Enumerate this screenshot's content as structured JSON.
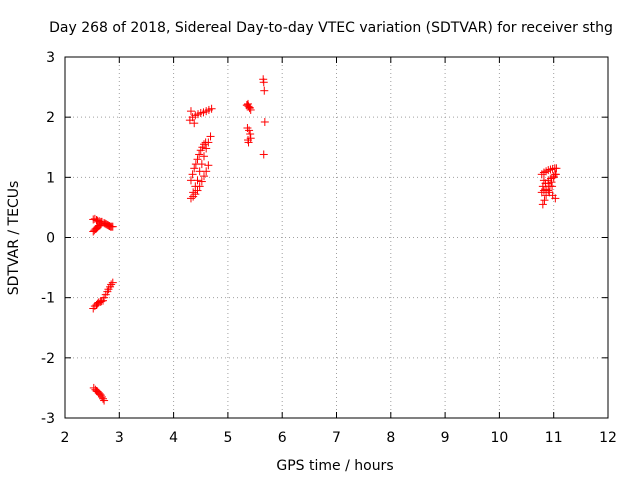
{
  "chart_data": {
    "type": "scatter",
    "title": "Day 268 of 2018, Sidereal Day-to-day VTEC variation (SDTVAR) for receiver sthg",
    "xlabel": "GPS time / hours",
    "ylabel": "SDTVAR / TECUs",
    "xlim": [
      2,
      12
    ],
    "ylim": [
      -3,
      3
    ],
    "x_ticks": [
      2,
      3,
      4,
      5,
      6,
      7,
      8,
      9,
      10,
      11,
      12
    ],
    "y_ticks": [
      -3,
      -2,
      -1,
      0,
      1,
      2,
      3
    ],
    "x_tick_labels": [
      "2",
      "3",
      "4",
      "5",
      "6",
      "7",
      "8",
      "9",
      "10",
      "11",
      "12"
    ],
    "y_tick_labels": [
      "-3",
      "-2",
      "-1",
      "0",
      "1",
      "2",
      "3"
    ],
    "grid": true,
    "legend": false,
    "marker": "plus",
    "colors": {
      "points": "#ff0000",
      "axes": "#000000",
      "grid": "#a0a0a0",
      "background": "#ffffff"
    },
    "series": [
      {
        "name": "sthg",
        "x": [
          2.52,
          2.55,
          2.58,
          2.6,
          2.62,
          2.65,
          2.67,
          2.7,
          2.72,
          2.75,
          2.78,
          2.8,
          2.83,
          2.85,
          2.88,
          2.53,
          2.56,
          2.58,
          2.6,
          2.62,
          2.64,
          2.66,
          2.68,
          2.7,
          2.72,
          2.52,
          2.55,
          2.58,
          2.6,
          2.63,
          2.66,
          2.68,
          2.72,
          2.74,
          2.76,
          2.78,
          2.8,
          2.82,
          2.84,
          2.86,
          2.88,
          2.52,
          2.54,
          2.56,
          2.58,
          2.6,
          2.62,
          2.64,
          2.66,
          4.3,
          4.35,
          4.4,
          4.45,
          4.5,
          4.55,
          4.6,
          4.65,
          4.7,
          4.32,
          4.38,
          4.32,
          4.35,
          4.38,
          4.41,
          4.44,
          4.47,
          4.5,
          4.53,
          4.56,
          4.59,
          4.36,
          4.4,
          4.44,
          4.48,
          4.52,
          4.56,
          4.6,
          4.64,
          4.68,
          4.32,
          4.36,
          4.4,
          4.44,
          4.48,
          4.52,
          4.56,
          4.6,
          4.64,
          5.35,
          5.38,
          5.4,
          5.42,
          5.36,
          5.39,
          5.41,
          5.37,
          5.35,
          5.37,
          5.4,
          5.38,
          5.42,
          5.65,
          5.66,
          5.67,
          5.68,
          5.66,
          10.8,
          10.83,
          10.86,
          10.9,
          10.93,
          10.96,
          11.0,
          11.03,
          10.78,
          10.82,
          10.86,
          10.9,
          10.94,
          10.98,
          11.02,
          11.05,
          10.8,
          10.85,
          10.9,
          10.95,
          11.0,
          11.04,
          10.78,
          10.82,
          10.86,
          10.92,
          10.98,
          11.03,
          10.82,
          10.9,
          10.97
        ],
        "y": [
          -1.18,
          -1.14,
          -1.12,
          -1.1,
          -1.08,
          -1.07,
          -1.06,
          -1.05,
          -1.0,
          -0.95,
          -0.9,
          -0.86,
          -0.82,
          -0.78,
          -0.75,
          -2.5,
          -2.53,
          -2.55,
          -2.56,
          -2.58,
          -2.6,
          -2.62,
          -2.65,
          -2.68,
          -2.71,
          0.3,
          0.31,
          0.29,
          0.28,
          0.27,
          0.26,
          0.26,
          0.24,
          0.23,
          0.22,
          0.21,
          0.2,
          0.19,
          0.18,
          0.18,
          0.18,
          0.1,
          0.12,
          0.14,
          0.15,
          0.17,
          0.19,
          0.2,
          0.22,
          1.95,
          2.0,
          2.03,
          2.05,
          2.07,
          2.08,
          2.1,
          2.12,
          2.14,
          2.1,
          1.9,
          0.95,
          1.05,
          1.15,
          1.22,
          1.3,
          1.38,
          1.45,
          1.5,
          1.55,
          1.58,
          0.75,
          0.85,
          0.95,
          1.1,
          1.22,
          1.35,
          1.48,
          1.58,
          1.68,
          0.65,
          0.68,
          0.72,
          0.78,
          0.85,
          0.93,
          1.02,
          1.1,
          1.2,
          2.2,
          2.18,
          2.15,
          2.12,
          1.82,
          1.78,
          1.72,
          1.62,
          2.2,
          2.22,
          2.16,
          1.58,
          1.65,
          2.63,
          2.58,
          2.44,
          1.92,
          1.38,
          0.55,
          0.62,
          0.7,
          0.78,
          0.85,
          0.92,
          1.0,
          1.05,
          1.05,
          1.08,
          1.1,
          1.12,
          1.13,
          1.14,
          1.15,
          1.15,
          0.85,
          0.9,
          0.95,
          0.98,
          1.02,
          1.05,
          0.75,
          0.78,
          0.8,
          0.75,
          0.7,
          0.65,
          0.95,
          0.9,
          0.85
        ]
      }
    ]
  }
}
